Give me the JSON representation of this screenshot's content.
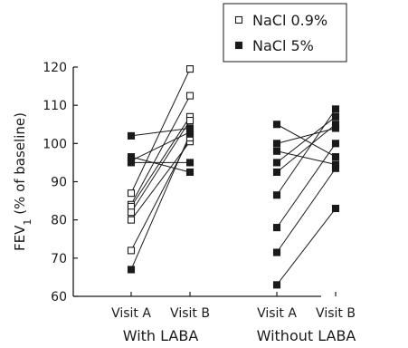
{
  "chart_data": {
    "type": "scatter",
    "ylabel_main": "FEV",
    "ylabel_sub": "1",
    "ylabel_rest": " (% of baseline)",
    "ylim": [
      60,
      120
    ],
    "yticks": [
      "60",
      "70",
      "80",
      "90",
      "100",
      "110",
      "120"
    ],
    "groups": [
      {
        "label": "With LABA",
        "xticks": [
          "Visit A",
          "Visit B"
        ],
        "pairs": [
          {
            "series": "NaCl 0.9%",
            "a": 87,
            "b": 119.5
          },
          {
            "series": "NaCl 0.9%",
            "a": 84,
            "b": 112.5
          },
          {
            "series": "NaCl 0.9%",
            "a": 83.5,
            "b": 107
          },
          {
            "series": "NaCl 0.9%",
            "a": 82,
            "b": 106
          },
          {
            "series": "NaCl 0.9%",
            "a": 80,
            "b": 100.5
          },
          {
            "series": "NaCl 0.9%",
            "a": 72,
            "b": 101.5
          },
          {
            "series": "NaCl 5%",
            "a": 102,
            "b": 104
          },
          {
            "series": "NaCl 5%",
            "a": 96.5,
            "b": 92.5
          },
          {
            "series": "NaCl 5%",
            "a": 95.5,
            "b": 103
          },
          {
            "series": "NaCl 5%",
            "a": 95,
            "b": 95
          },
          {
            "series": "NaCl 5%",
            "a": 67,
            "b": 102.5
          }
        ]
      },
      {
        "label": "Without LABA",
        "xticks": [
          "Visit A",
          "Visit B"
        ],
        "pairs": [
          {
            "series": "NaCl 5%",
            "a": 105,
            "b": 96.5
          },
          {
            "series": "NaCl 5%",
            "a": 100,
            "b": 104
          },
          {
            "series": "NaCl 5%",
            "a": 98,
            "b": 94.5
          },
          {
            "series": "NaCl 5%",
            "a": 95,
            "b": 107
          },
          {
            "series": "NaCl 5%",
            "a": 92.5,
            "b": 105
          },
          {
            "series": "NaCl 5%",
            "a": 86.5,
            "b": 109
          },
          {
            "series": "NaCl 5%",
            "a": 78,
            "b": 100
          },
          {
            "series": "NaCl 5%",
            "a": 71.5,
            "b": 93.5
          },
          {
            "series": "NaCl 5%",
            "a": 63,
            "b": 83
          }
        ]
      }
    ],
    "legend": [
      {
        "name": "NaCl 0.9%",
        "marker": "open-square"
      },
      {
        "name": "NaCl 5%",
        "marker": "filled-square"
      }
    ],
    "legend_position": "top-right",
    "grid": false,
    "colors": {
      "ink": "#1a1a1a",
      "open_fill": "#ffffff"
    }
  }
}
